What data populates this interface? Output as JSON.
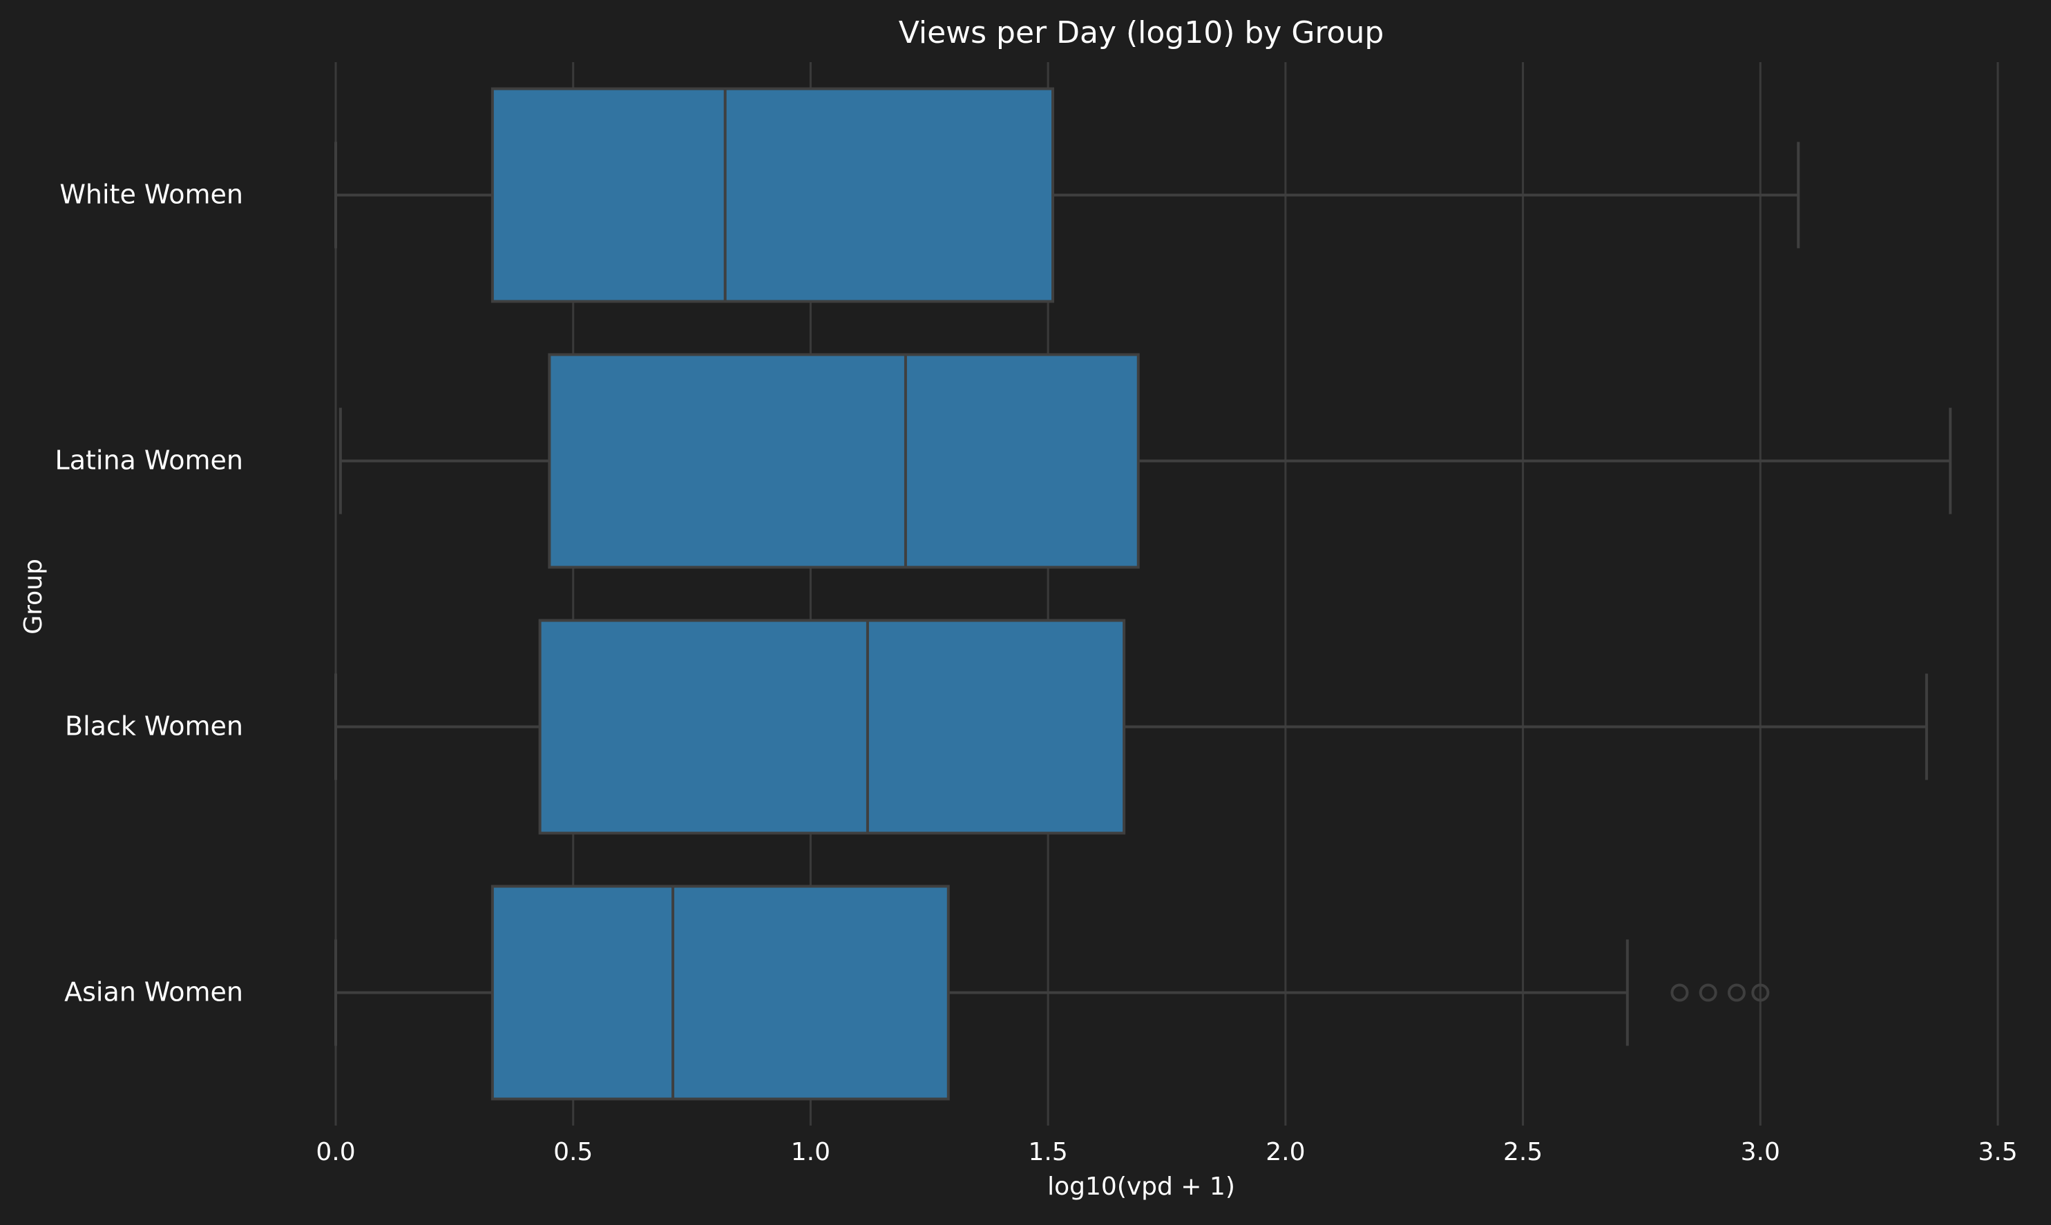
{
  "chart_data": {
    "type": "boxplot",
    "orientation": "horizontal",
    "title": "Views per Day (log10) by Group",
    "xlabel": "log10(vpd + 1)",
    "ylabel": "Group",
    "xlim": [
      0.0,
      3.5
    ],
    "xticks": [
      0.0,
      0.5,
      1.0,
      1.5,
      2.0,
      2.5,
      3.0,
      3.5
    ],
    "xtick_labels": [
      "0.0",
      "0.5",
      "1.0",
      "1.5",
      "2.0",
      "2.5",
      "3.0",
      "3.5"
    ],
    "grid": true,
    "categories": [
      "White Women",
      "Latina Women",
      "Black Women",
      "Asian Women"
    ],
    "boxes": [
      {
        "group": "White Women",
        "whisker_low": 0.0,
        "q1": 0.33,
        "median": 0.82,
        "q3": 1.51,
        "whisker_high": 3.08,
        "outliers": []
      },
      {
        "group": "Latina Women",
        "whisker_low": 0.01,
        "q1": 0.45,
        "median": 1.2,
        "q3": 1.69,
        "whisker_high": 3.4,
        "outliers": []
      },
      {
        "group": "Black Women",
        "whisker_low": 0.0,
        "q1": 0.43,
        "median": 1.12,
        "q3": 1.66,
        "whisker_high": 3.35,
        "outliers": []
      },
      {
        "group": "Asian Women",
        "whisker_low": 0.0,
        "q1": 0.33,
        "median": 0.71,
        "q3": 1.29,
        "whisker_high": 2.72,
        "outliers": [
          2.83,
          2.89,
          2.95,
          3.0
        ]
      }
    ],
    "colors": {
      "background": "#1e1e1e",
      "box_fill": "#3274a1",
      "box_edge": "#3f3f3f",
      "grid": "#3a3a3a",
      "text": "#ffffff"
    }
  }
}
